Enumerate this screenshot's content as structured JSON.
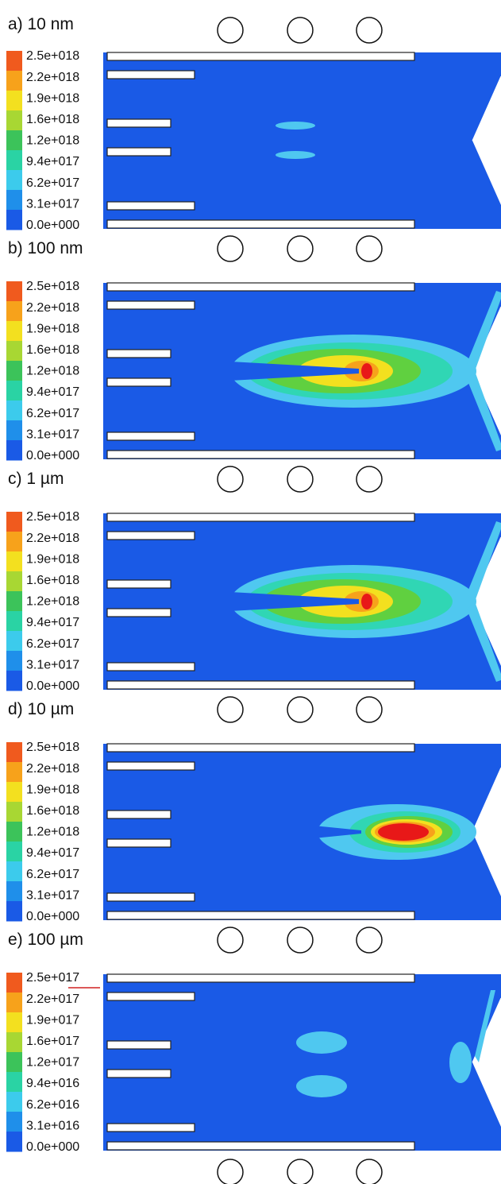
{
  "panels": [
    {
      "label": "a) 10 nm",
      "legend": [
        "2.5e+018",
        "2.2e+018",
        "1.9e+018",
        "1.6e+018",
        "1.2e+018",
        "9.4e+017",
        "6.2e+017",
        "3.1e+017",
        "0.0e+000"
      ]
    },
    {
      "label": "b) 100 nm",
      "legend": [
        "2.5e+018",
        "2.2e+018",
        "1.9e+018",
        "1.6e+018",
        "1.2e+018",
        "9.4e+017",
        "6.2e+017",
        "3.1e+017",
        "0.0e+000"
      ]
    },
    {
      "label": "c) 1 µm",
      "legend": [
        "2.5e+018",
        "2.2e+018",
        "1.9e+018",
        "1.6e+018",
        "1.2e+018",
        "9.4e+017",
        "6.2e+017",
        "3.1e+017",
        "0.0e+000"
      ]
    },
    {
      "label": "d) 10 µm",
      "legend": [
        "2.5e+018",
        "2.2e+018",
        "1.9e+018",
        "1.6e+018",
        "1.2e+018",
        "9.4e+017",
        "6.2e+017",
        "3.1e+017",
        "0.0e+000"
      ]
    },
    {
      "label": "e) 100 µm",
      "legend": [
        "2.5e+017",
        "2.2e+017",
        "1.9e+017",
        "1.6e+017",
        "1.2e+017",
        "9.4e+016",
        "6.2e+016",
        "3.1e+016",
        "0.0e+000"
      ]
    }
  ]
}
